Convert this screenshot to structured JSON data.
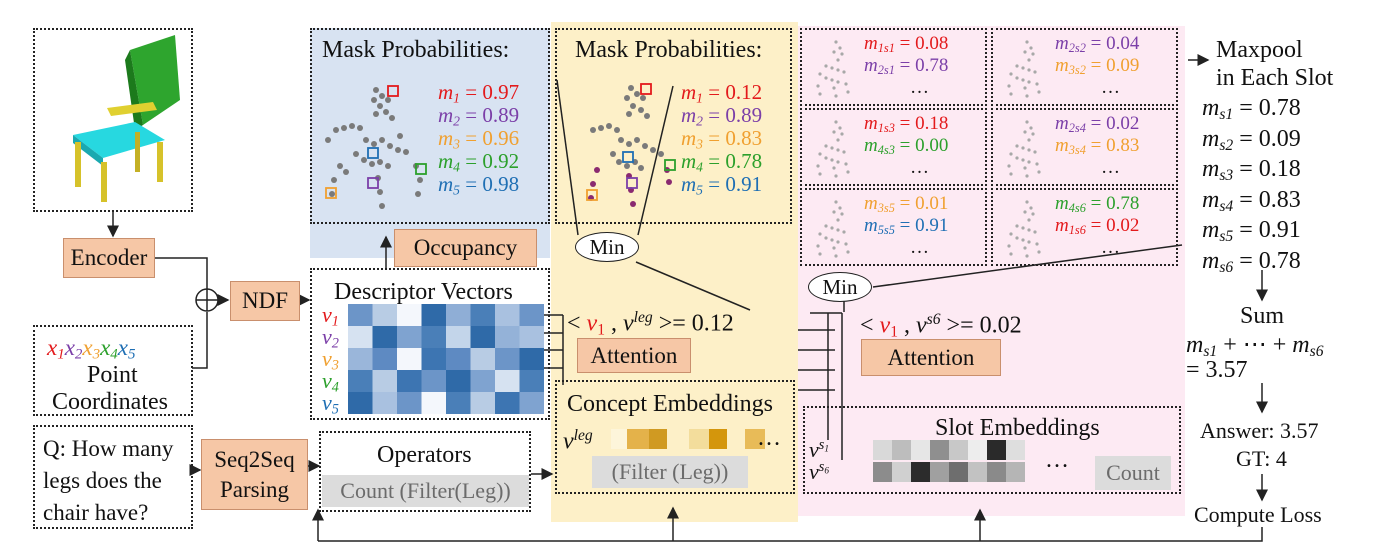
{
  "left": {
    "encoder": "Encoder",
    "ndf": "NDF",
    "seq2seq_line1": "Seq2Seq",
    "seq2seq_line2": "Parsing",
    "point_vars": [
      "x1",
      "x2",
      "x3",
      "x4",
      "x5"
    ],
    "point_label_1": "Point",
    "point_label_2": "Coordinates",
    "question_lines": [
      "Q: How many",
      "legs does the",
      "chair have?"
    ],
    "operators_title": "Operators",
    "operators_program": "Count (Filter(Leg))"
  },
  "blue_panel": {
    "title": "Mask Probabilities:",
    "masks": [
      {
        "label": "m1",
        "value": "0.97",
        "color": "#e31a1c"
      },
      {
        "label": "m2",
        "value": "0.89",
        "color": "#7b3fa8"
      },
      {
        "label": "m3",
        "value": "0.96",
        "color": "#f0a030"
      },
      {
        "label": "m4",
        "value": "0.92",
        "color": "#2ca02c"
      },
      {
        "label": "m5",
        "value": "0.98",
        "color": "#1f6fb4"
      }
    ],
    "occupancy": "Occupancy",
    "descriptor_title": "Descriptor Vectors",
    "descriptor_rows": [
      "v1",
      "v2",
      "v3",
      "v4",
      "v5"
    ]
  },
  "yellow_panel": {
    "title": "Mask Probabilities:",
    "masks": [
      {
        "label": "m1",
        "value": "0.12",
        "color": "#e31a1c"
      },
      {
        "label": "m2",
        "value": "0.89",
        "color": "#7b3fa8"
      },
      {
        "label": "m3",
        "value": "0.83",
        "color": "#f0a030"
      },
      {
        "label": "m4",
        "value": "0.78",
        "color": "#2ca02c"
      },
      {
        "label": "m5",
        "value": "0.91",
        "color": "#1f6fb4"
      }
    ],
    "min_label": "Min",
    "attention_expr_value": "0.12",
    "attention": "Attention",
    "concept_title": "Concept Embeddings",
    "concept_vector": "v^leg",
    "filter_label": "(Filter (Leg))",
    "ellipsis": "…"
  },
  "pink_panel": {
    "slots": [
      {
        "rows": [
          {
            "label": "m1s1",
            "value": "0.08",
            "color": "#e31a1c"
          },
          {
            "label": "m2s1",
            "value": "0.78",
            "color": "#7b3fa8"
          }
        ]
      },
      {
        "rows": [
          {
            "label": "m2s2",
            "value": "0.04",
            "color": "#7b3fa8"
          },
          {
            "label": "m3s2",
            "value": "0.09",
            "color": "#f0a030"
          }
        ]
      },
      {
        "rows": [
          {
            "label": "m1s3",
            "value": "0.18",
            "color": "#e31a1c"
          },
          {
            "label": "m4s3",
            "value": "0.00",
            "color": "#2ca02c"
          }
        ]
      },
      {
        "rows": [
          {
            "label": "m2s4",
            "value": "0.02",
            "color": "#7b3fa8"
          },
          {
            "label": "m3s4",
            "value": "0.83",
            "color": "#f0a030"
          }
        ]
      },
      {
        "rows": [
          {
            "label": "m3s5",
            "value": "0.01",
            "color": "#f0a030"
          },
          {
            "label": "m5s5",
            "value": "0.91",
            "color": "#1f6fb4"
          }
        ]
      },
      {
        "rows": [
          {
            "label": "m4s6",
            "value": "0.78",
            "color": "#2ca02c"
          },
          {
            "label": "m1s6",
            "value": "0.02",
            "color": "#e31a1c"
          }
        ]
      }
    ],
    "dots": "…",
    "min_label": "Min",
    "attention_expr_value": "0.02",
    "attention": "Attention",
    "slot_title": "Slot Embeddings",
    "slot_vectors": [
      "v^s1",
      "v^s6"
    ],
    "count": "Count",
    "ellipsis": "…"
  },
  "right": {
    "maxpool_1": "Maxpool",
    "maxpool_2": "in Each Slot",
    "slot_max": [
      {
        "label": "ms1",
        "value": "0.78"
      },
      {
        "label": "ms2",
        "value": "0.09"
      },
      {
        "label": "ms3",
        "value": "0.18"
      },
      {
        "label": "ms4",
        "value": "0.83"
      },
      {
        "label": "ms5",
        "value": "0.91"
      },
      {
        "label": "ms6",
        "value": "0.78"
      }
    ],
    "sum_label": "Sum",
    "sum_value": "3.57",
    "answer": "Answer: 3.57",
    "gt": "GT: 4",
    "compute_loss": "Compute Loss"
  },
  "colors": {
    "blue_bg": "#d8e3f2",
    "yellow_bg": "#fdf0c8",
    "pink_bg": "#fdeaf3",
    "peach": "#f6c7a6",
    "gray_box": "#dcdcdc"
  }
}
